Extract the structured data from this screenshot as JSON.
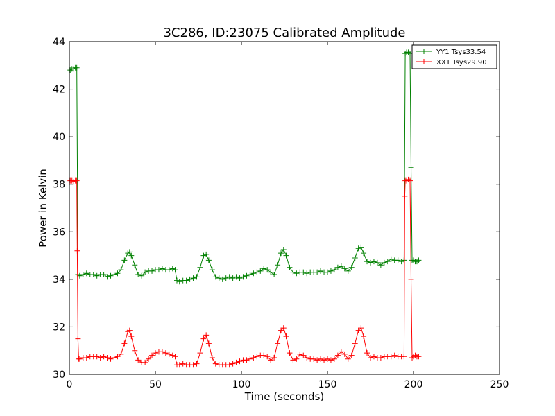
{
  "chart_data": {
    "type": "line",
    "title": "3C286, ID:23075 Calibrated Amplitude",
    "xlabel": "Time (seconds)",
    "ylabel": "Power in Kelvin",
    "xlim": [
      0,
      250
    ],
    "ylim": [
      30,
      44
    ],
    "xticks": [
      0,
      50,
      100,
      150,
      200,
      250
    ],
    "yticks": [
      30,
      32,
      34,
      36,
      38,
      40,
      42,
      44
    ],
    "grid": false,
    "legend_position": "top-right",
    "marker": "plus",
    "series": [
      {
        "name": "YY1 Tsys33.54",
        "color": "#008000",
        "points": [
          [
            0.5,
            42.8
          ],
          [
            1.5,
            42.85
          ],
          [
            2.5,
            42.85
          ],
          [
            3.5,
            42.9
          ],
          [
            4.3,
            42.9
          ],
          [
            5.0,
            34.2
          ],
          [
            6,
            34.15
          ],
          [
            8,
            34.2
          ],
          [
            10,
            34.25
          ],
          [
            12,
            34.2
          ],
          [
            14,
            34.2
          ],
          [
            16,
            34.15
          ],
          [
            18,
            34.2
          ],
          [
            20,
            34.2
          ],
          [
            22,
            34.1
          ],
          [
            24,
            34.15
          ],
          [
            26,
            34.2
          ],
          [
            28,
            34.25
          ],
          [
            30,
            34.4
          ],
          [
            32,
            34.8
          ],
          [
            34,
            35.1
          ],
          [
            35,
            35.15
          ],
          [
            36,
            35.0
          ],
          [
            38,
            34.6
          ],
          [
            40,
            34.2
          ],
          [
            42,
            34.15
          ],
          [
            44,
            34.3
          ],
          [
            46,
            34.35
          ],
          [
            48,
            34.35
          ],
          [
            50,
            34.4
          ],
          [
            52,
            34.4
          ],
          [
            54,
            34.45
          ],
          [
            56,
            34.4
          ],
          [
            58,
            34.4
          ],
          [
            60,
            34.45
          ],
          [
            61.5,
            34.4
          ],
          [
            62.5,
            33.95
          ],
          [
            64,
            33.9
          ],
          [
            66,
            33.95
          ],
          [
            68,
            33.95
          ],
          [
            70,
            34.0
          ],
          [
            72,
            34.05
          ],
          [
            74,
            34.1
          ],
          [
            76,
            34.5
          ],
          [
            78,
            35.0
          ],
          [
            79.5,
            35.05
          ],
          [
            81,
            34.8
          ],
          [
            83,
            34.4
          ],
          [
            85,
            34.1
          ],
          [
            87,
            34.05
          ],
          [
            89,
            34.0
          ],
          [
            91,
            34.05
          ],
          [
            93,
            34.1
          ],
          [
            95,
            34.05
          ],
          [
            97,
            34.1
          ],
          [
            99,
            34.05
          ],
          [
            101,
            34.1
          ],
          [
            103,
            34.15
          ],
          [
            105,
            34.2
          ],
          [
            107,
            34.25
          ],
          [
            109,
            34.3
          ],
          [
            111,
            34.35
          ],
          [
            113,
            34.45
          ],
          [
            115,
            34.4
          ],
          [
            117,
            34.3
          ],
          [
            119,
            34.2
          ],
          [
            121,
            34.6
          ],
          [
            123,
            35.1
          ],
          [
            124.5,
            35.25
          ],
          [
            126,
            35.0
          ],
          [
            128,
            34.5
          ],
          [
            130,
            34.3
          ],
          [
            132,
            34.25
          ],
          [
            134,
            34.3
          ],
          [
            136,
            34.3
          ],
          [
            138,
            34.25
          ],
          [
            140,
            34.3
          ],
          [
            142,
            34.3
          ],
          [
            144,
            34.3
          ],
          [
            146,
            34.35
          ],
          [
            148,
            34.3
          ],
          [
            150,
            34.3
          ],
          [
            152,
            34.35
          ],
          [
            154,
            34.4
          ],
          [
            156,
            34.5
          ],
          [
            158,
            34.55
          ],
          [
            160,
            34.45
          ],
          [
            162,
            34.35
          ],
          [
            164,
            34.5
          ],
          [
            166,
            34.9
          ],
          [
            168,
            35.3
          ],
          [
            169.5,
            35.35
          ],
          [
            171,
            35.1
          ],
          [
            173,
            34.75
          ],
          [
            175,
            34.7
          ],
          [
            177,
            34.75
          ],
          [
            179,
            34.7
          ],
          [
            181,
            34.6
          ],
          [
            183,
            34.7
          ],
          [
            185,
            34.75
          ],
          [
            187,
            34.85
          ],
          [
            189,
            34.8
          ],
          [
            191,
            34.8
          ],
          [
            193,
            34.75
          ],
          [
            194.5,
            34.8
          ],
          [
            195.2,
            43.5
          ],
          [
            196,
            43.55
          ],
          [
            197,
            43.55
          ],
          [
            198,
            43.5
          ],
          [
            198.6,
            38.7
          ],
          [
            199.2,
            34.8
          ],
          [
            200,
            34.8
          ],
          [
            201,
            34.75
          ],
          [
            202,
            34.75
          ],
          [
            203,
            34.8
          ]
        ]
      },
      {
        "name": "XX1 Tsys29.90",
        "color": "#ff0000",
        "points": [
          [
            0.5,
            38.15
          ],
          [
            1.5,
            38.15
          ],
          [
            2.5,
            38.1
          ],
          [
            3.5,
            38.15
          ],
          [
            4.3,
            38.15
          ],
          [
            4.6,
            35.2
          ],
          [
            5.0,
            31.5
          ],
          [
            5.4,
            30.65
          ],
          [
            6,
            30.65
          ],
          [
            8,
            30.7
          ],
          [
            10,
            30.7
          ],
          [
            12,
            30.75
          ],
          [
            14,
            30.75
          ],
          [
            16,
            30.75
          ],
          [
            18,
            30.7
          ],
          [
            20,
            30.75
          ],
          [
            22,
            30.7
          ],
          [
            24,
            30.65
          ],
          [
            26,
            30.7
          ],
          [
            28,
            30.75
          ],
          [
            30,
            30.85
          ],
          [
            32,
            31.3
          ],
          [
            34,
            31.8
          ],
          [
            35,
            31.85
          ],
          [
            36,
            31.6
          ],
          [
            38,
            31.0
          ],
          [
            40,
            30.6
          ],
          [
            42,
            30.5
          ],
          [
            44,
            30.5
          ],
          [
            46,
            30.65
          ],
          [
            48,
            30.8
          ],
          [
            50,
            30.9
          ],
          [
            52,
            30.95
          ],
          [
            54,
            30.95
          ],
          [
            56,
            30.9
          ],
          [
            58,
            30.85
          ],
          [
            60,
            30.8
          ],
          [
            61.5,
            30.75
          ],
          [
            62.5,
            30.4
          ],
          [
            64,
            30.4
          ],
          [
            66,
            30.45
          ],
          [
            68,
            30.4
          ],
          [
            70,
            30.4
          ],
          [
            72,
            30.4
          ],
          [
            74,
            30.45
          ],
          [
            76,
            30.9
          ],
          [
            78,
            31.5
          ],
          [
            79.5,
            31.65
          ],
          [
            81,
            31.3
          ],
          [
            83,
            30.7
          ],
          [
            85,
            30.45
          ],
          [
            87,
            30.4
          ],
          [
            89,
            30.4
          ],
          [
            91,
            30.4
          ],
          [
            93,
            30.4
          ],
          [
            95,
            30.45
          ],
          [
            97,
            30.5
          ],
          [
            99,
            30.55
          ],
          [
            101,
            30.6
          ],
          [
            103,
            30.6
          ],
          [
            105,
            30.65
          ],
          [
            107,
            30.7
          ],
          [
            109,
            30.75
          ],
          [
            111,
            30.8
          ],
          [
            113,
            30.8
          ],
          [
            115,
            30.75
          ],
          [
            117,
            30.6
          ],
          [
            119,
            30.7
          ],
          [
            121,
            31.3
          ],
          [
            123,
            31.85
          ],
          [
            124.5,
            31.95
          ],
          [
            126,
            31.6
          ],
          [
            128,
            30.9
          ],
          [
            130,
            30.6
          ],
          [
            132,
            30.65
          ],
          [
            134,
            30.85
          ],
          [
            136,
            30.8
          ],
          [
            138,
            30.7
          ],
          [
            140,
            30.65
          ],
          [
            142,
            30.65
          ],
          [
            144,
            30.6
          ],
          [
            146,
            30.65
          ],
          [
            148,
            30.6
          ],
          [
            150,
            30.65
          ],
          [
            152,
            30.6
          ],
          [
            154,
            30.65
          ],
          [
            156,
            30.8
          ],
          [
            158,
            30.95
          ],
          [
            160,
            30.85
          ],
          [
            162,
            30.65
          ],
          [
            164,
            30.8
          ],
          [
            166,
            31.3
          ],
          [
            168,
            31.85
          ],
          [
            169.5,
            31.95
          ],
          [
            171,
            31.6
          ],
          [
            173,
            30.9
          ],
          [
            175,
            30.7
          ],
          [
            177,
            30.75
          ],
          [
            179,
            30.7
          ],
          [
            181,
            30.7
          ],
          [
            183,
            30.75
          ],
          [
            185,
            30.75
          ],
          [
            187,
            30.75
          ],
          [
            189,
            30.8
          ],
          [
            191,
            30.75
          ],
          [
            193,
            30.75
          ],
          [
            194.5,
            30.75
          ],
          [
            194.9,
            37.5
          ],
          [
            195.2,
            38.15
          ],
          [
            196,
            38.15
          ],
          [
            197,
            38.2
          ],
          [
            198,
            38.15
          ],
          [
            198.6,
            34.0
          ],
          [
            199.2,
            30.7
          ],
          [
            200,
            30.75
          ],
          [
            201,
            30.8
          ],
          [
            202,
            30.75
          ],
          [
            203,
            30.75
          ]
        ]
      }
    ]
  }
}
